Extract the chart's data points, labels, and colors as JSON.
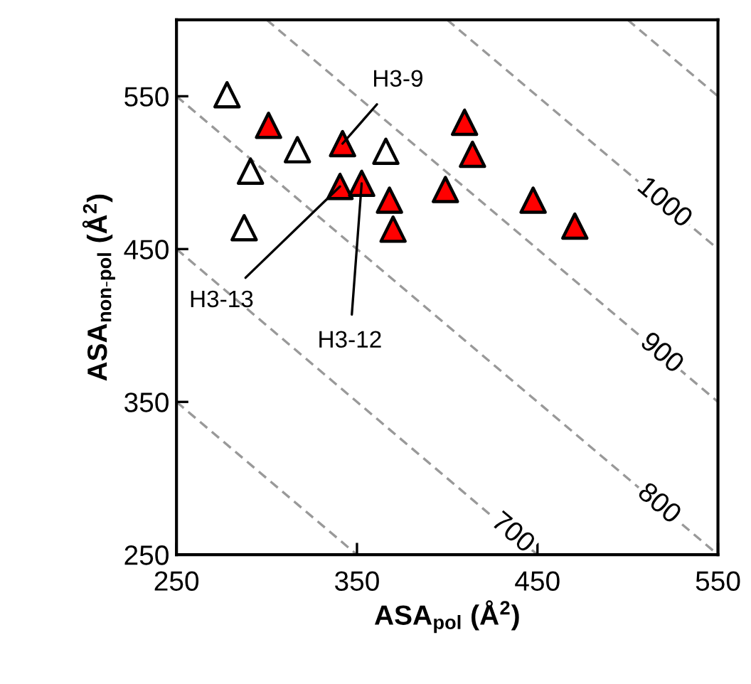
{
  "chart_data": {
    "type": "scatter",
    "xlabel": "ASA$_{pol}$ (Å$^{2}$)",
    "ylabel": "ASA$_{non‑pol}$ (Å$^{2}$)",
    "xlim": [
      250,
      550
    ],
    "ylim": [
      250,
      600
    ],
    "xticks": [
      250,
      350,
      450,
      550
    ],
    "yticks": [
      250,
      350,
      450,
      550
    ],
    "grid": false,
    "legend": false,
    "marker": "triangle",
    "series": [
      {
        "type": "line",
        "color": "#999999",
        "line_style": "dashed",
        "marker": "none",
        "x": [
          250,
          350
        ],
        "values": [
          350,
          250
        ]
      },
      {
        "type": "line",
        "color": "#999999",
        "line_style": "dashed",
        "marker": "none",
        "x": [
          250,
          450
        ],
        "values": [
          450,
          250
        ]
      },
      {
        "type": "line",
        "color": "#999999",
        "line_style": "dashed",
        "marker": "none",
        "x": [
          250,
          550
        ],
        "values": [
          550,
          250
        ]
      },
      {
        "type": "line",
        "color": "#999999",
        "line_style": "dashed",
        "marker": "none",
        "x": [
          300,
          550
        ],
        "values": [
          600,
          350
        ]
      },
      {
        "type": "line",
        "color": "#999999",
        "line_style": "dashed",
        "marker": "none",
        "x": [
          400,
          550
        ],
        "values": [
          600,
          450
        ]
      },
      {
        "type": "line",
        "color": "#999999",
        "line_style": "dashed",
        "marker": "none",
        "x": [
          500,
          550
        ],
        "values": [
          600,
          550
        ]
      },
      {
        "color": "#ffffff",
        "x": [
          278,
          317,
          366,
          291,
          287.5
        ],
        "values": [
          551,
          515,
          514,
          501,
          464
        ]
      },
      {
        "color": "#ff0000",
        "x": [
          301,
          342,
          340.6,
          352.6,
          368,
          370,
          399,
          409.6,
          414,
          447.6,
          470.7
        ],
        "values": [
          531,
          519,
          491,
          493,
          482,
          463,
          489,
          533,
          512,
          482,
          465
        ]
      }
    ],
    "annotations": [
      {
        "text": "H3-9",
        "x": 342,
        "y": 519
      },
      {
        "text": "H3-13",
        "x": 340.6,
        "y": 491
      },
      {
        "text": "H3-12",
        "x": 352.6,
        "y": 493
      },
      {
        "text": "700",
        "x": 436,
        "y": 264
      },
      {
        "text": "800",
        "x": 517,
        "y": 283
      },
      {
        "text": "900",
        "x": 518.5,
        "y": 381.5
      },
      {
        "text": "1000",
        "x": 520,
        "y": 480
      }
    ]
  }
}
